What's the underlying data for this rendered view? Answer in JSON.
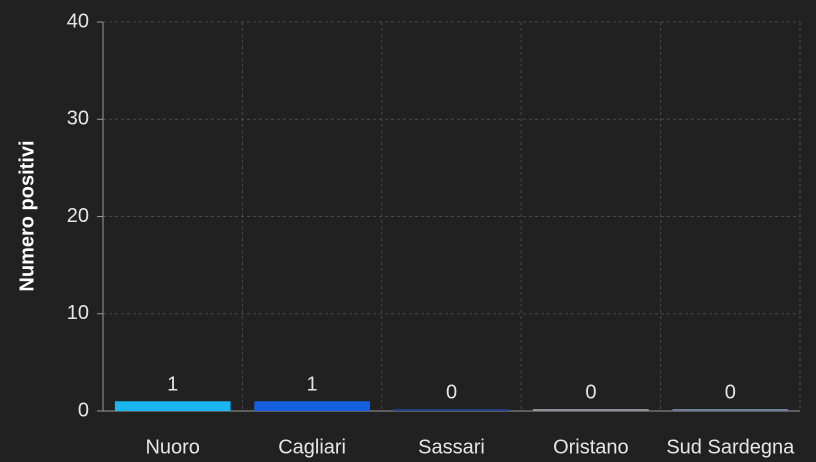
{
  "chart_data": {
    "type": "bar",
    "y_label": "Numero positivi",
    "categories": [
      "Nuoro",
      "Cagliari",
      "Sassari",
      "Oristano",
      "Sud Sardegna"
    ],
    "values": [
      1,
      1,
      0,
      0,
      0
    ],
    "colors": [
      "#19b6ef",
      "#1460e0",
      "#1f3f85",
      "#8c9099",
      "#6b7f9b"
    ],
    "ylim": [
      0,
      40
    ],
    "yticks": [
      0,
      10,
      20,
      30,
      40
    ],
    "grid": true
  }
}
